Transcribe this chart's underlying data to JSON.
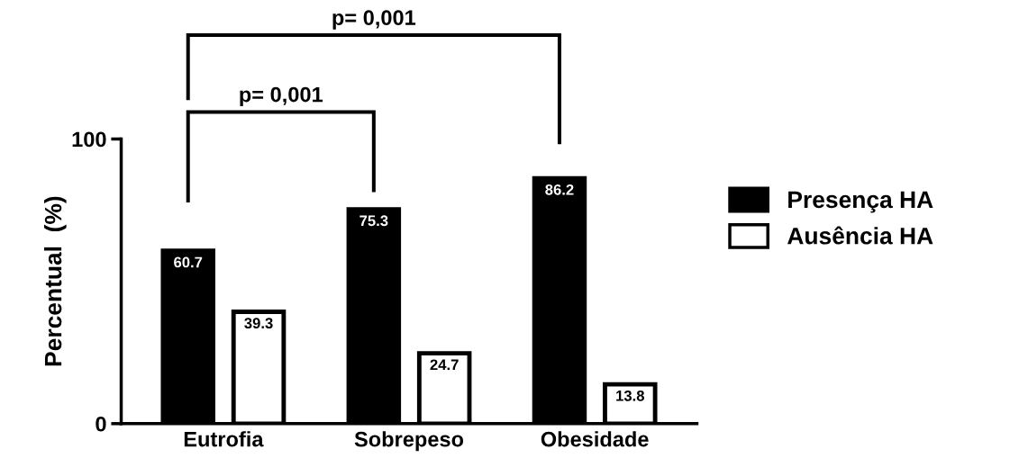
{
  "chart_data": {
    "type": "bar",
    "ylabel": "Percentual  (%)",
    "categories": [
      "Eutrofia",
      "Sobrepeso",
      "Obesidade"
    ],
    "series": [
      {
        "name": "Presença HA",
        "color": "#000000",
        "values": [
          60.7,
          75.3,
          86.2
        ]
      },
      {
        "name": "Ausência HA",
        "color": "#ffffff",
        "values": [
          39.3,
          24.7,
          13.8
        ]
      }
    ],
    "ylim": [
      0,
      100
    ],
    "yticks": [
      0,
      100
    ],
    "data_labels": true,
    "grid": false,
    "legend": "right",
    "annotations": [
      "p= 0,001",
      "p= 0,001"
    ]
  }
}
